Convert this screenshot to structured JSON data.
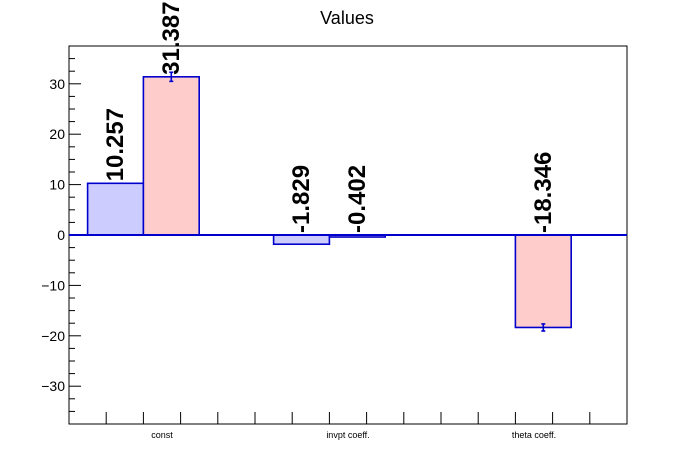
{
  "chart_data": {
    "type": "bar",
    "title": "Values",
    "xlabel": "",
    "ylabel": "",
    "categories": [
      "const",
      "invpt coeff.",
      "theta coeff."
    ],
    "ylim": [
      -37.5,
      37.5
    ],
    "yticks": [
      -30,
      -20,
      -10,
      0,
      10,
      20,
      30
    ],
    "grid": false,
    "series": [
      {
        "values": [
          10.257,
          -1.829,
          null
        ],
        "labels": [
          "10.257",
          "-1.829",
          ""
        ],
        "errors": [
          0,
          0,
          0
        ],
        "fill_color": "#ccccff",
        "edge_color": "#0000cc"
      },
      {
        "values": [
          31.387,
          -0.402,
          -18.346
        ],
        "labels": [
          "31.387",
          "-0.402",
          "-18.346"
        ],
        "errors": [
          0.9,
          0,
          0.7
        ],
        "fill_color": "#ffcccc",
        "edge_color": "#0000cc"
      }
    ]
  }
}
